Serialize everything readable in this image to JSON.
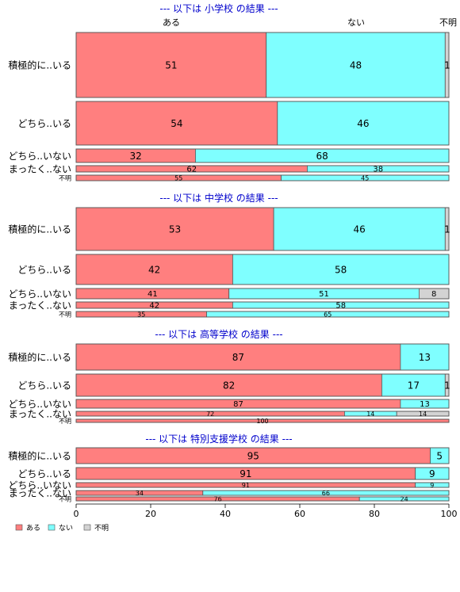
{
  "chart_data": {
    "type": "bar",
    "orientation": "horizontal",
    "stacked": true,
    "xlim": [
      0,
      100
    ],
    "x_ticks": [
      "0",
      "20",
      "40",
      "60",
      "80",
      "100"
    ],
    "column_labels": [
      "ある",
      "ない",
      "不明"
    ],
    "legend": {
      "placement": "bottom-left",
      "entries": [
        "ある",
        "ない",
        "不明"
      ]
    },
    "colors": {
      "ある": "#ff7f7f",
      "ない": "#7fffff",
      "不明": "#d3d3d3",
      "title": "#0000cc",
      "border": "#555555"
    },
    "panels": [
      {
        "title": "--- 以下は 小学校 の結果 ---",
        "rows": [
          {
            "label": "積極的に..いる",
            "values": [
              51,
              48,
              1
            ],
            "labels": [
              "51",
              "48",
              "1"
            ]
          },
          {
            "label": "どちら..いる",
            "values": [
              54,
              46,
              0
            ],
            "labels": [
              "54",
              "46",
              ""
            ]
          },
          {
            "label": "どちら..いない",
            "values": [
              32,
              68,
              0
            ],
            "labels": [
              "32",
              "68",
              ""
            ]
          },
          {
            "label": "まったく..ない",
            "values": [
              62,
              38,
              0
            ],
            "labels": [
              "62",
              "38",
              ""
            ]
          },
          {
            "label": "不明",
            "values": [
              55,
              45,
              0
            ],
            "labels": [
              "55",
              "45",
              ""
            ]
          }
        ]
      },
      {
        "title": "--- 以下は 中学校 の結果 ---",
        "rows": [
          {
            "label": "積極的に..いる",
            "values": [
              53,
              46,
              1
            ],
            "labels": [
              "53",
              "46",
              "1"
            ]
          },
          {
            "label": "どちら..いる",
            "values": [
              42,
              58,
              0
            ],
            "labels": [
              "42",
              "58",
              ""
            ]
          },
          {
            "label": "どちら..いない",
            "values": [
              41,
              51,
              8
            ],
            "labels": [
              "41",
              "51",
              "8"
            ]
          },
          {
            "label": "まったく..ない",
            "values": [
              42,
              58,
              0
            ],
            "labels": [
              "42",
              "58",
              ""
            ]
          },
          {
            "label": "不明",
            "values": [
              35,
              65,
              0
            ],
            "labels": [
              "35",
              "65",
              ""
            ]
          }
        ]
      },
      {
        "title": "--- 以下は 高等学校 の結果 ---",
        "rows": [
          {
            "label": "積極的に..いる",
            "values": [
              87,
              13,
              0
            ],
            "labels": [
              "87",
              "13",
              ""
            ]
          },
          {
            "label": "どちら..いる",
            "values": [
              82,
              17,
              1
            ],
            "labels": [
              "82",
              "17",
              "1"
            ]
          },
          {
            "label": "どちら..いない",
            "values": [
              87,
              13,
              0
            ],
            "labels": [
              "87",
              "13",
              ""
            ]
          },
          {
            "label": "まったく..ない",
            "values": [
              72,
              14,
              14
            ],
            "labels": [
              "72",
              "14",
              "14"
            ]
          },
          {
            "label": "不明",
            "values": [
              100,
              0,
              0
            ],
            "labels": [
              "100",
              "",
              ""
            ]
          }
        ]
      },
      {
        "title": "--- 以下は 特別支援学校 の結果 ---",
        "rows": [
          {
            "label": "積極的に..いる",
            "values": [
              95,
              5,
              0
            ],
            "labels": [
              "95",
              "5",
              ""
            ]
          },
          {
            "label": "どちら..いる",
            "values": [
              91,
              9,
              0
            ],
            "labels": [
              "91",
              "9",
              ""
            ]
          },
          {
            "label": "どちら..いない",
            "values": [
              91,
              9,
              0
            ],
            "labels": [
              "91",
              "9",
              ""
            ]
          },
          {
            "label": "まったく..ない",
            "values": [
              34,
              66,
              0
            ],
            "labels": [
              "34",
              "66",
              ""
            ]
          },
          {
            "label": "不明",
            "values": [
              76,
              24,
              0
            ],
            "labels": [
              "76",
              "24",
              ""
            ]
          }
        ]
      }
    ]
  }
}
